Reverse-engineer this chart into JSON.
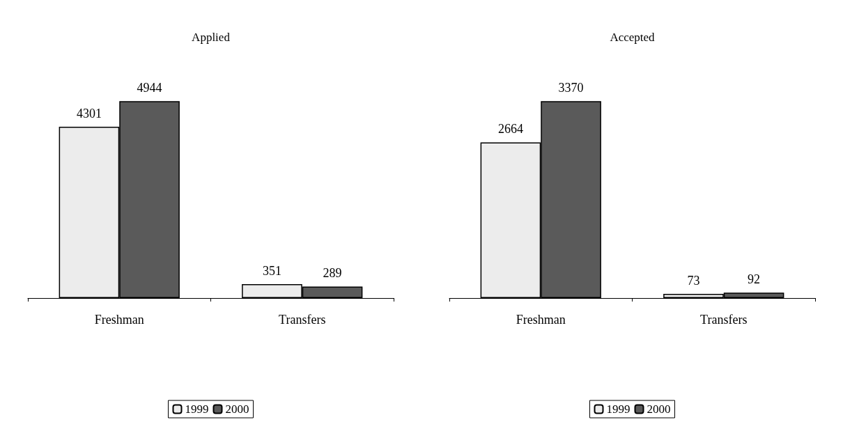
{
  "chart_data": [
    {
      "type": "bar",
      "title": "Applied",
      "categories": [
        "Freshman",
        "Transfers"
      ],
      "series": [
        {
          "name": "1999",
          "color": "#ececec",
          "values": [
            4301,
            351
          ]
        },
        {
          "name": "2000",
          "color": "#5a5a5a",
          "values": [
            4944,
            289
          ]
        }
      ],
      "data_labels": true,
      "legend": "bottom",
      "tick_labels": "x"
    },
    {
      "type": "bar",
      "title": "Accepted",
      "categories": [
        "Freshman",
        "Transfers"
      ],
      "series": [
        {
          "name": "1999",
          "color": "#ececec",
          "values": [
            2664,
            73
          ]
        },
        {
          "name": "2000",
          "color": "#5a5a5a",
          "values": [
            3370,
            92
          ]
        }
      ],
      "data_labels": true,
      "legend": "bottom",
      "tick_labels": "x"
    }
  ]
}
